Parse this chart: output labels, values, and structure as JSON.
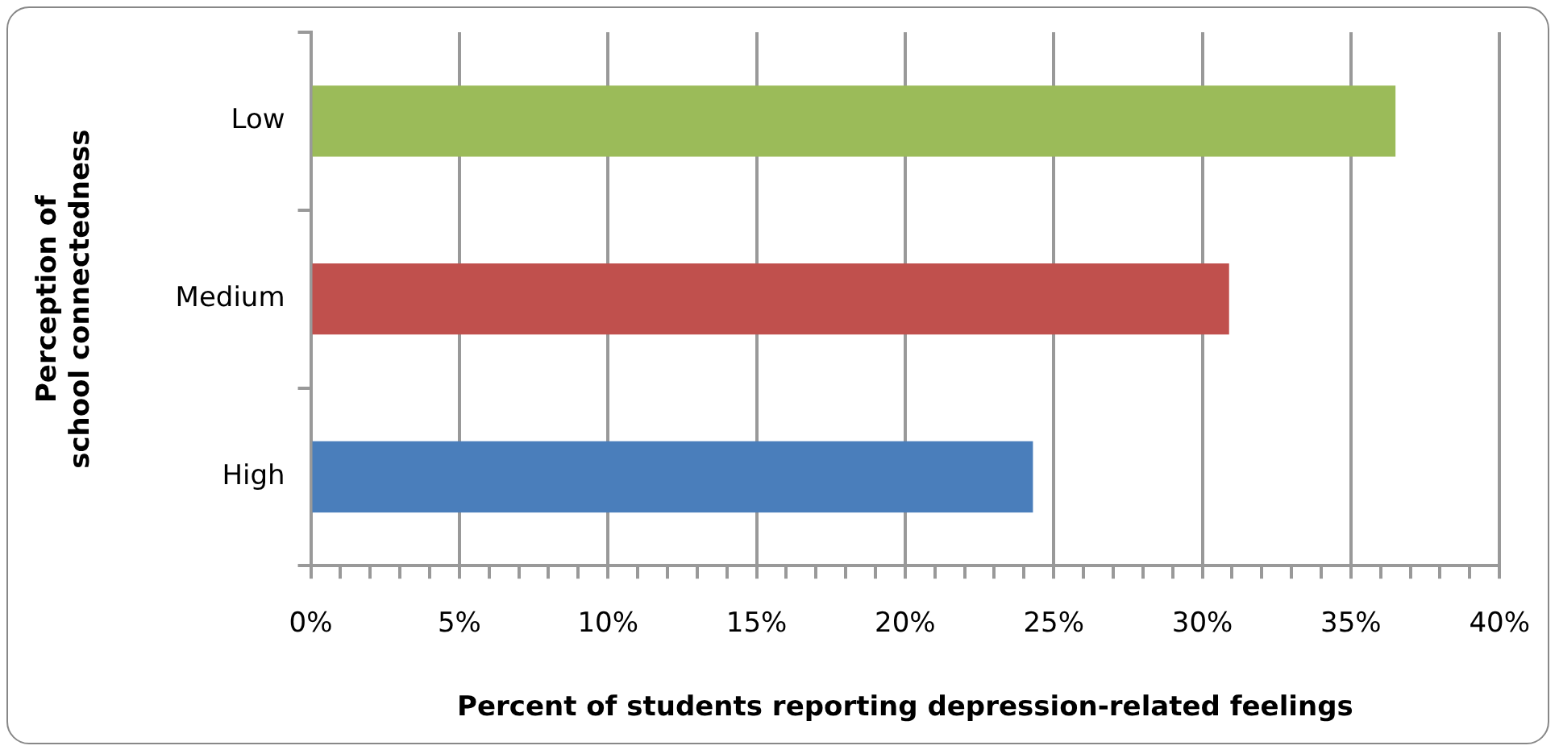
{
  "chart_data": {
    "type": "bar",
    "orientation": "horizontal",
    "xlabel": "Percent of students reporting depression-related feelings",
    "ylabel": "Perception of school connectedness",
    "categories": [
      "Low",
      "Medium",
      "High"
    ],
    "values": [
      36.5,
      30.9,
      24.3
    ],
    "colors": [
      "#9bbb59",
      "#c0504d",
      "#4a7ebb"
    ],
    "xlim": [
      0,
      40
    ],
    "xticks": [
      {
        "value": 0,
        "label": "0%"
      },
      {
        "value": 1,
        "label": null
      },
      {
        "value": 2,
        "label": null
      },
      {
        "value": 3,
        "label": null
      },
      {
        "value": 4,
        "label": null
      },
      {
        "value": 5,
        "label": "5%"
      },
      {
        "value": 6,
        "label": null
      },
      {
        "value": 7,
        "label": null
      },
      {
        "value": 8,
        "label": null
      },
      {
        "value": 9,
        "label": null
      },
      {
        "value": 10,
        "label": "10%"
      },
      {
        "value": 11,
        "label": null
      },
      {
        "value": 12,
        "label": null
      },
      {
        "value": 13,
        "label": null
      },
      {
        "value": 14,
        "label": null
      },
      {
        "value": 15,
        "label": "15%"
      },
      {
        "value": 16,
        "label": null
      },
      {
        "value": 17,
        "label": null
      },
      {
        "value": 18,
        "label": null
      },
      {
        "value": 19,
        "label": null
      },
      {
        "value": 20,
        "label": "20%"
      },
      {
        "value": 21,
        "label": null
      },
      {
        "value": 22,
        "label": null
      },
      {
        "value": 23,
        "label": null
      },
      {
        "value": 24,
        "label": null
      },
      {
        "value": 25,
        "label": "25%"
      },
      {
        "value": 26,
        "label": null
      },
      {
        "value": 27,
        "label": null
      },
      {
        "value": 28,
        "label": null
      },
      {
        "value": 29,
        "label": null
      },
      {
        "value": 30,
        "label": "30%"
      },
      {
        "value": 31,
        "label": null
      },
      {
        "value": 32,
        "label": null
      },
      {
        "value": 33,
        "label": null
      },
      {
        "value": 34,
        "label": null
      },
      {
        "value": 35,
        "label": "35%"
      },
      {
        "value": 36,
        "label": null
      },
      {
        "value": 37,
        "label": null
      },
      {
        "value": 38,
        "label": null
      },
      {
        "value": 39,
        "label": null
      },
      {
        "value": 40,
        "label": "40%"
      }
    ],
    "grid": "x",
    "legend": false
  }
}
